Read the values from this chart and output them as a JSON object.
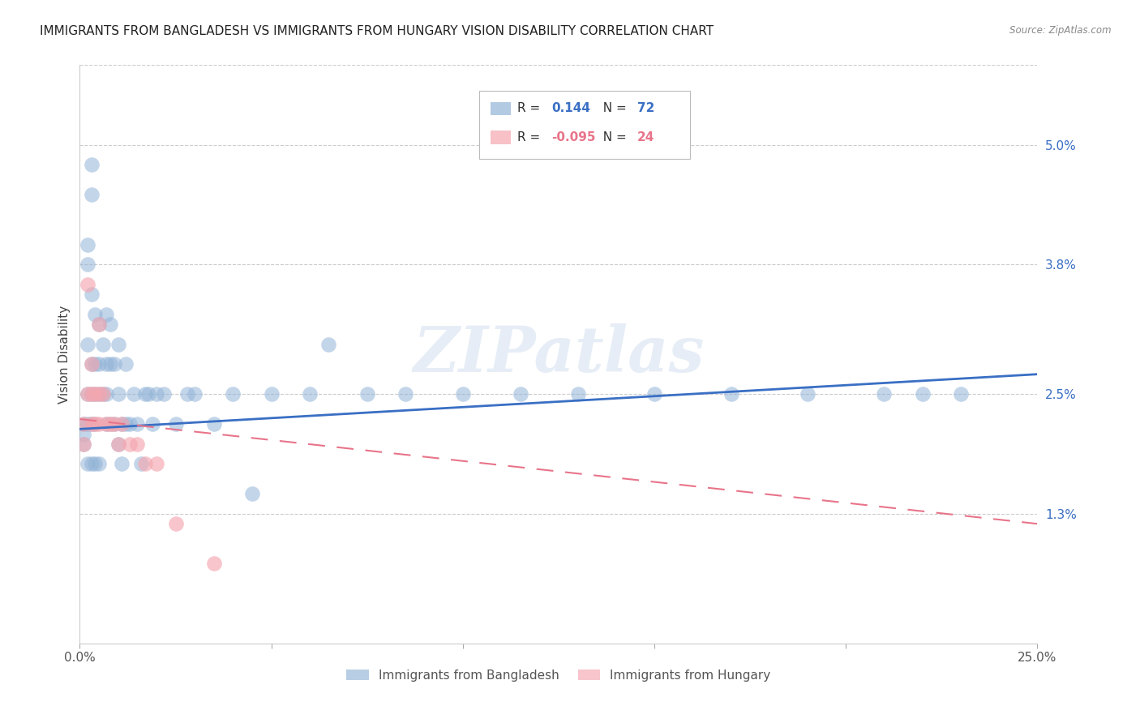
{
  "title": "IMMIGRANTS FROM BANGLADESH VS IMMIGRANTS FROM HUNGARY VISION DISABILITY CORRELATION CHART",
  "source": "Source: ZipAtlas.com",
  "ylabel": "Vision Disability",
  "ytick_labels": [
    "5.0%",
    "3.8%",
    "2.5%",
    "1.3%"
  ],
  "ytick_values": [
    0.05,
    0.038,
    0.025,
    0.013
  ],
  "xlim": [
    0.0,
    0.25
  ],
  "ylim": [
    0.0,
    0.058
  ],
  "color_blue": "#92B4D7",
  "color_pink": "#F4A7B0",
  "line_blue": "#3A6FC4",
  "line_pink": "#E8748A",
  "watermark": "ZIPatlas",
  "bangladesh_x": [
    0.001,
    0.001,
    0.001,
    0.002,
    0.002,
    0.002,
    0.002,
    0.002,
    0.002,
    0.003,
    0.003,
    0.003,
    0.003,
    0.003,
    0.003,
    0.003,
    0.004,
    0.004,
    0.004,
    0.004,
    0.004,
    0.005,
    0.005,
    0.005,
    0.005,
    0.006,
    0.006,
    0.007,
    0.007,
    0.007,
    0.007,
    0.008,
    0.008,
    0.008,
    0.009,
    0.009,
    0.01,
    0.01,
    0.01,
    0.011,
    0.011,
    0.012,
    0.012,
    0.013,
    0.014,
    0.015,
    0.016,
    0.017,
    0.018,
    0.019,
    0.02,
    0.022,
    0.025,
    0.028,
    0.03,
    0.035,
    0.04,
    0.045,
    0.05,
    0.06,
    0.065,
    0.075,
    0.085,
    0.1,
    0.115,
    0.13,
    0.15,
    0.17,
    0.19,
    0.21,
    0.22,
    0.23
  ],
  "bangladesh_y": [
    0.022,
    0.021,
    0.02,
    0.04,
    0.038,
    0.03,
    0.025,
    0.022,
    0.018,
    0.048,
    0.045,
    0.035,
    0.028,
    0.025,
    0.022,
    0.018,
    0.033,
    0.028,
    0.025,
    0.022,
    0.018,
    0.032,
    0.028,
    0.025,
    0.018,
    0.03,
    0.025,
    0.033,
    0.028,
    0.025,
    0.022,
    0.032,
    0.028,
    0.022,
    0.028,
    0.022,
    0.03,
    0.025,
    0.02,
    0.022,
    0.018,
    0.028,
    0.022,
    0.022,
    0.025,
    0.022,
    0.018,
    0.025,
    0.025,
    0.022,
    0.025,
    0.025,
    0.022,
    0.025,
    0.025,
    0.022,
    0.025,
    0.015,
    0.025,
    0.025,
    0.03,
    0.025,
    0.025,
    0.025,
    0.025,
    0.025,
    0.025,
    0.025,
    0.025,
    0.025,
    0.025,
    0.025
  ],
  "hungary_x": [
    0.001,
    0.001,
    0.002,
    0.002,
    0.003,
    0.003,
    0.003,
    0.004,
    0.004,
    0.005,
    0.005,
    0.005,
    0.006,
    0.007,
    0.008,
    0.009,
    0.01,
    0.011,
    0.013,
    0.015,
    0.017,
    0.02,
    0.025,
    0.035
  ],
  "hungary_y": [
    0.022,
    0.02,
    0.036,
    0.025,
    0.028,
    0.025,
    0.022,
    0.025,
    0.022,
    0.032,
    0.025,
    0.022,
    0.025,
    0.022,
    0.022,
    0.022,
    0.02,
    0.022,
    0.02,
    0.02,
    0.018,
    0.018,
    0.012,
    0.008
  ],
  "bang_trend_x": [
    0.0,
    0.25
  ],
  "bang_trend_y": [
    0.0215,
    0.027
  ],
  "hung_trend_x": [
    0.0,
    0.25
  ],
  "hung_trend_y": [
    0.0225,
    0.012
  ]
}
